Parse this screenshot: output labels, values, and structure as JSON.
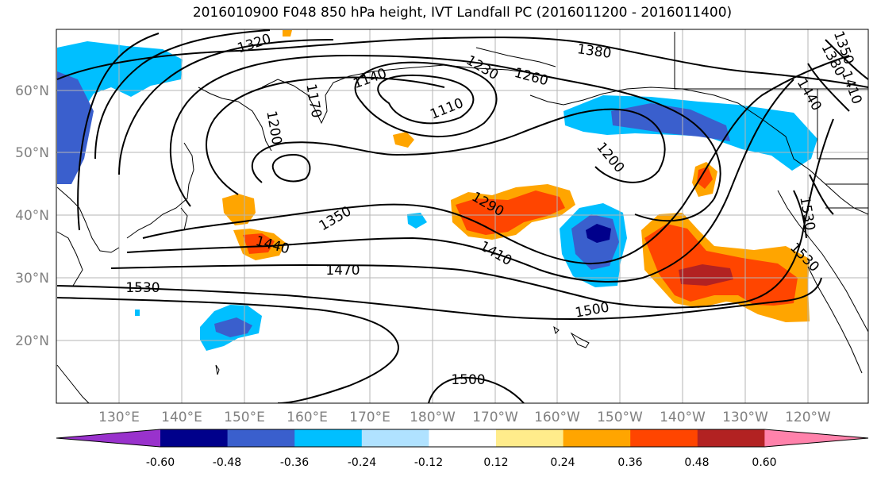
{
  "title": "2016010900 F048 850 hPa height, IVT Landfall PC (2016011200 - 2016011400)",
  "lat_labels": [
    "60°N",
    "50°N",
    "40°N",
    "30°N",
    "20°N"
  ],
  "lon_labels": [
    "130°E",
    "140°E",
    "150°E",
    "160°E",
    "170°E",
    "180°W",
    "170°W",
    "160°W",
    "150°W",
    "140°W",
    "130°W",
    "120°W"
  ],
  "contour_labels": [
    "1320",
    "1380",
    "1350",
    "1380",
    "1410",
    "1440",
    "1140",
    "1170",
    "1230",
    "1260",
    "1110",
    "1200",
    "1200",
    "1290",
    "1350",
    "1410",
    "1440",
    "1470",
    "1500",
    "1530",
    "1530",
    "1530",
    "1500"
  ],
  "colorbar": {
    "tick_labels": [
      "-0.60",
      "-0.48",
      "-0.36",
      "-0.24",
      "-0.12",
      "0.12",
      "0.24",
      "0.36",
      "0.48",
      "0.60"
    ],
    "colors": [
      "#9932cc",
      "#00008b",
      "#3a5fcd",
      "#00bfff",
      "#b0e2ff",
      "#ffffff",
      "#ffec8b",
      "#ffa500",
      "#ff4500",
      "#b22222",
      "#ff82ab"
    ]
  }
}
